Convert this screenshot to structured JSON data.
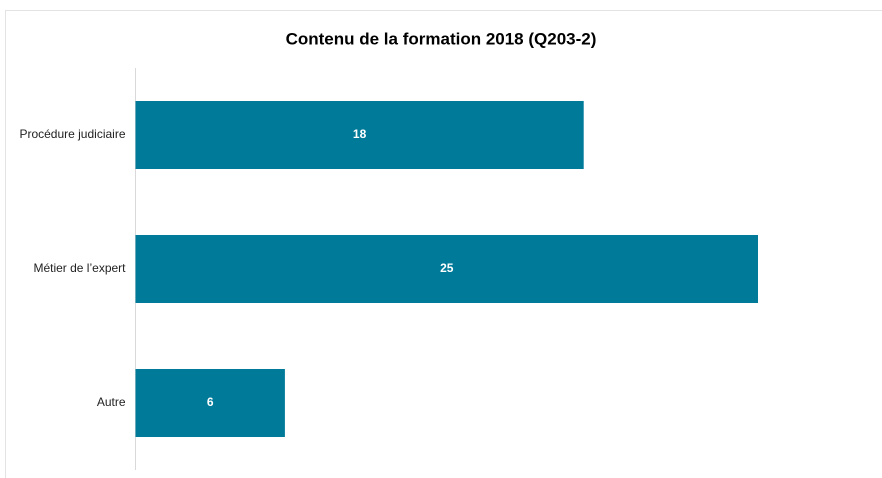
{
  "chart_data": {
    "type": "bar",
    "orientation": "horizontal",
    "title": "Contenu de la formation 2018 (Q203-2)",
    "categories": [
      "Procédure judiciaire",
      "Métier de l’expert",
      "Autre"
    ],
    "values": [
      18,
      25,
      6
    ],
    "color": "#007a99"
  }
}
